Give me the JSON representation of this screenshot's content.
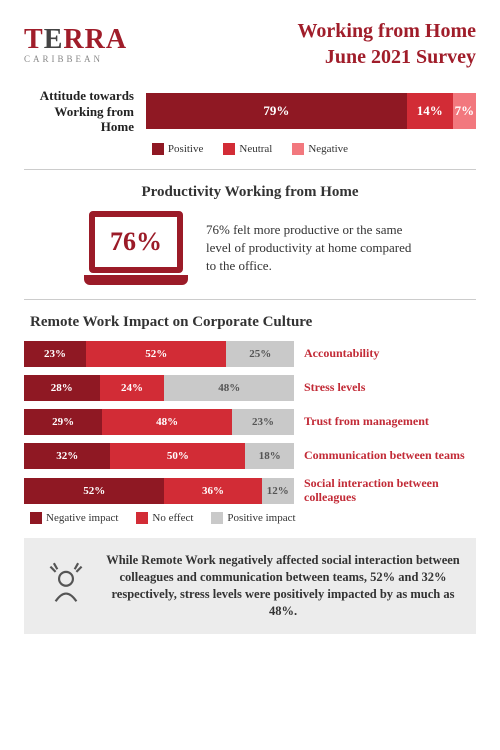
{
  "logo": {
    "brand_main": "TERRA",
    "brand_sub": "CARIBBEAN"
  },
  "title_line1": "Working from Home",
  "title_line2": "June 2021 Survey",
  "colors": {
    "dark_red": "#8f1823",
    "red": "#d22c36",
    "pink": "#f2787e",
    "grey": "#c9c9c9",
    "summary_bg": "#ececec"
  },
  "attitude": {
    "label_line1": "Attitude towards",
    "label_line2": "Working from Home",
    "segments": [
      {
        "label": "79%",
        "width": 79,
        "color": "#8f1823"
      },
      {
        "label": "14%",
        "width": 14,
        "color": "#d22c36"
      },
      {
        "label": "7%",
        "width": 7,
        "color": "#f2787e"
      }
    ],
    "legend": [
      {
        "label": "Positive",
        "color": "#8f1823"
      },
      {
        "label": "Neutral",
        "color": "#d22c36"
      },
      {
        "label": "Negative",
        "color": "#f2787e"
      }
    ]
  },
  "productivity": {
    "title": "Productivity Working from Home",
    "stat": "76%",
    "text": "76% felt more productive or the same level of productivity at home compared to the office."
  },
  "impact": {
    "title": "Remote Work Impact on Corporate Culture",
    "rows": [
      {
        "label": "Accountability",
        "segments": [
          {
            "v": 23,
            "c": "#8f1823"
          },
          {
            "v": 52,
            "c": "#d22c36"
          },
          {
            "v": 25,
            "c": "#c9c9c9"
          }
        ]
      },
      {
        "label": "Stress levels",
        "segments": [
          {
            "v": 28,
            "c": "#8f1823"
          },
          {
            "v": 24,
            "c": "#d22c36"
          },
          {
            "v": 48,
            "c": "#c9c9c9"
          }
        ]
      },
      {
        "label": "Trust from management",
        "segments": [
          {
            "v": 29,
            "c": "#8f1823"
          },
          {
            "v": 48,
            "c": "#d22c36"
          },
          {
            "v": 23,
            "c": "#c9c9c9"
          }
        ]
      },
      {
        "label": "Communication between teams",
        "segments": [
          {
            "v": 32,
            "c": "#8f1823"
          },
          {
            "v": 50,
            "c": "#d22c36"
          },
          {
            "v": 18,
            "c": "#c9c9c9"
          }
        ]
      },
      {
        "label": "Social interaction between colleagues",
        "segments": [
          {
            "v": 52,
            "c": "#8f1823"
          },
          {
            "v": 36,
            "c": "#d22c36"
          },
          {
            "v": 12,
            "c": "#c9c9c9"
          }
        ]
      }
    ],
    "legend": [
      {
        "label": "Negative impact",
        "color": "#8f1823"
      },
      {
        "label": "No effect",
        "color": "#d22c36"
      },
      {
        "label": "Positive impact",
        "color": "#c9c9c9"
      }
    ]
  },
  "summary": {
    "text": "While Remote Work negatively affected social interaction between colleagues and communication between teams, 52% and 32% respectively, stress levels were positively impacted by as much as 48%."
  }
}
